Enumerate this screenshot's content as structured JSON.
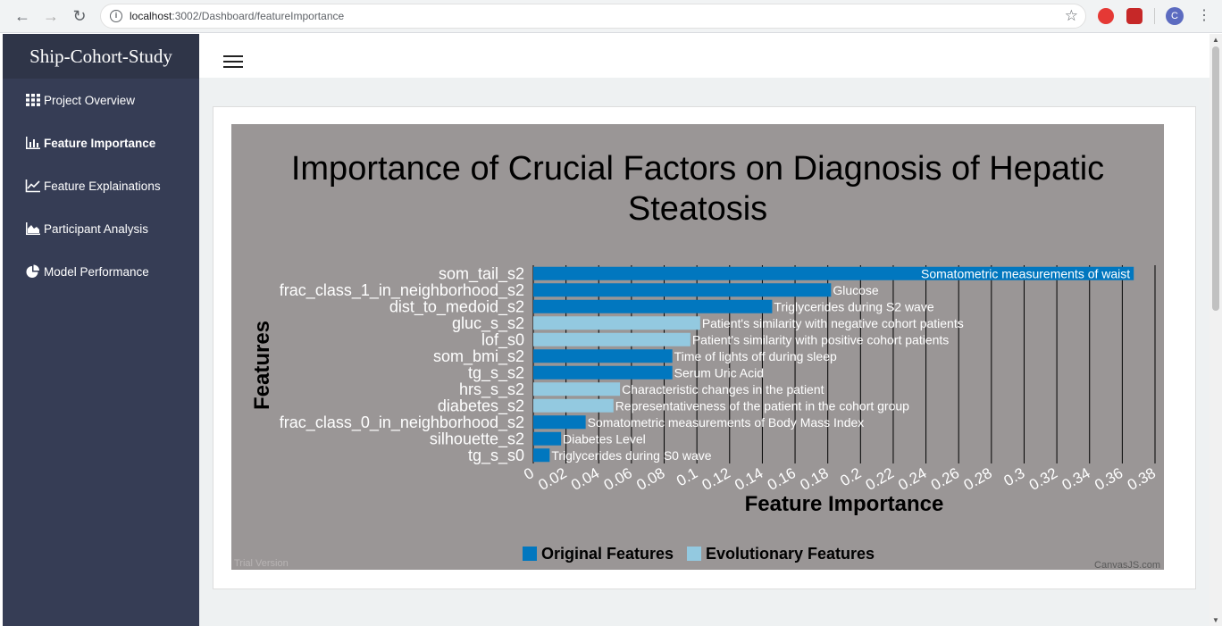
{
  "browser": {
    "url_host": "localhost",
    "url_path": ":3002/Dashboard/featureImportance",
    "avatar_letter": "C"
  },
  "sidebar": {
    "brand": "Ship-Cohort-Study",
    "items": [
      {
        "label": "Project Overview",
        "icon": "grid-icon",
        "active": false
      },
      {
        "label": "Feature Importance",
        "icon": "bar-chart-icon",
        "active": true
      },
      {
        "label": "Feature Explainations",
        "icon": "line-chart-icon",
        "active": false
      },
      {
        "label": "Participant Analysis",
        "icon": "area-chart-icon",
        "active": false
      },
      {
        "label": "Model Performance",
        "icon": "pie-chart-icon",
        "active": false
      }
    ]
  },
  "colors": {
    "original": "#0177bf",
    "evolutionary": "#93c9e0",
    "chart_bg": "#9a9696",
    "sidebar_bg": "#363d55"
  },
  "chart_data": {
    "type": "bar",
    "orientation": "horizontal",
    "title": "Importance of Crucial Factors on Diagnosis of Hepatic Steatosis",
    "xlabel": "Feature Importance",
    "ylabel": "Features",
    "xlim": [
      0,
      0.38
    ],
    "xticks": [
      "0",
      "0.02",
      "0.04",
      "0.06",
      "0.08",
      "0.1",
      "0.12",
      "0.14",
      "0.16",
      "0.18",
      "0.2",
      "0.22",
      "0.24",
      "0.26",
      "0.28",
      "0.3",
      "0.32",
      "0.34",
      "0.36",
      "0.38"
    ],
    "grid": "vertical",
    "legend_position": "bottom",
    "series": [
      {
        "name": "Original Features",
        "color": "#0177bf"
      },
      {
        "name": "Evolutionary Features",
        "color": "#93c9e0"
      }
    ],
    "bars": [
      {
        "feature": "som_tail_s2",
        "value": 0.367,
        "label": "Somatometric measurements of waist",
        "series": 0
      },
      {
        "feature": "frac_class_1_in_neighborhood_s2",
        "value": 0.182,
        "label": "Glucose",
        "series": 0
      },
      {
        "feature": "dist_to_medoid_s2",
        "value": 0.146,
        "label": "Triglycerides during S2 wave",
        "series": 0
      },
      {
        "feature": "gluc_s_s2",
        "value": 0.102,
        "label": "Patient's similarity with negative cohort patients",
        "series": 1
      },
      {
        "feature": "lof_s0",
        "value": 0.096,
        "label": "Patient's similarity with positive cohort patients",
        "series": 1
      },
      {
        "feature": "som_bmi_s2",
        "value": 0.085,
        "label": "Time of lights off during sleep",
        "series": 0
      },
      {
        "feature": "tg_s_s2",
        "value": 0.085,
        "label": "Serum Uric Acid",
        "series": 0
      },
      {
        "feature": "hrs_s_s2",
        "value": 0.053,
        "label": "Characteristic changes in the patient",
        "series": 1
      },
      {
        "feature": "diabetes_s2",
        "value": 0.049,
        "label": "Representativeness of the patient in the cohort group",
        "series": 1
      },
      {
        "feature": "frac_class_0_in_neighborhood_s2",
        "value": 0.032,
        "label": "Somatometric measurements of Body Mass Index",
        "series": 0
      },
      {
        "feature": "silhouette_s2",
        "value": 0.017,
        "label": "Diabetes Level",
        "series": 0
      },
      {
        "feature": "tg_s_s0",
        "value": 0.01,
        "label": "Triglycerides during S0 wave",
        "series": 0
      }
    ],
    "watermark_left": "Trial Version",
    "watermark_right": "CanvasJS.com"
  }
}
